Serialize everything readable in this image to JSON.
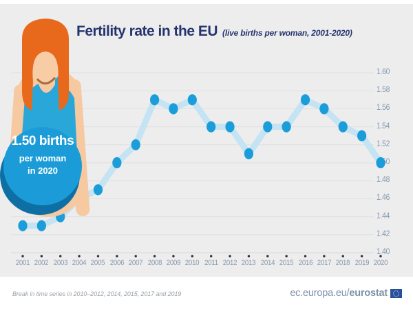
{
  "header": {
    "title": "Fertility rate in the EU",
    "subtitle": "(live births per woman, 2001-2020)"
  },
  "badge": {
    "value_line": "1.50 births",
    "unit_line": "per woman",
    "year_line": "in 2020"
  },
  "chart_data": {
    "type": "line",
    "title": "Fertility rate in the EU (live births per woman, 2001-2020)",
    "x": [
      2001,
      2002,
      2003,
      2004,
      2005,
      2006,
      2007,
      2008,
      2009,
      2010,
      2011,
      2012,
      2013,
      2014,
      2015,
      2016,
      2017,
      2018,
      2019,
      2020
    ],
    "values": [
      1.43,
      1.43,
      1.44,
      1.46,
      1.47,
      1.5,
      1.52,
      1.57,
      1.56,
      1.57,
      1.54,
      1.54,
      1.51,
      1.54,
      1.54,
      1.57,
      1.56,
      1.54,
      1.53,
      1.5
    ],
    "ylim": [
      1.4,
      1.6
    ],
    "ytick_step": 0.02,
    "ytick_labels": [
      "1.60",
      "1.58",
      "1.56",
      "1.54",
      "1.52",
      "1.50",
      "1.48",
      "1.46",
      "1.44",
      "1.42",
      "1.40"
    ],
    "grid": true,
    "legend_position": "none",
    "colors": {
      "marker": "#1b9dd9",
      "line": "#c4e3f3",
      "grid": "#dfe0e2",
      "axis_label": "#8598ab",
      "tick_dot": "#333333",
      "title": "#24356e",
      "badge_circle": "#1b9cd8",
      "badge_shadow": "#0e6fa4",
      "background": "#ededee"
    }
  },
  "footer": {
    "note": "Break in time series in 2010–2012, 2014, 2015, 2017 and 2019",
    "site_prefix": "ec.europa.eu/",
    "site_bold": "eurostat"
  }
}
